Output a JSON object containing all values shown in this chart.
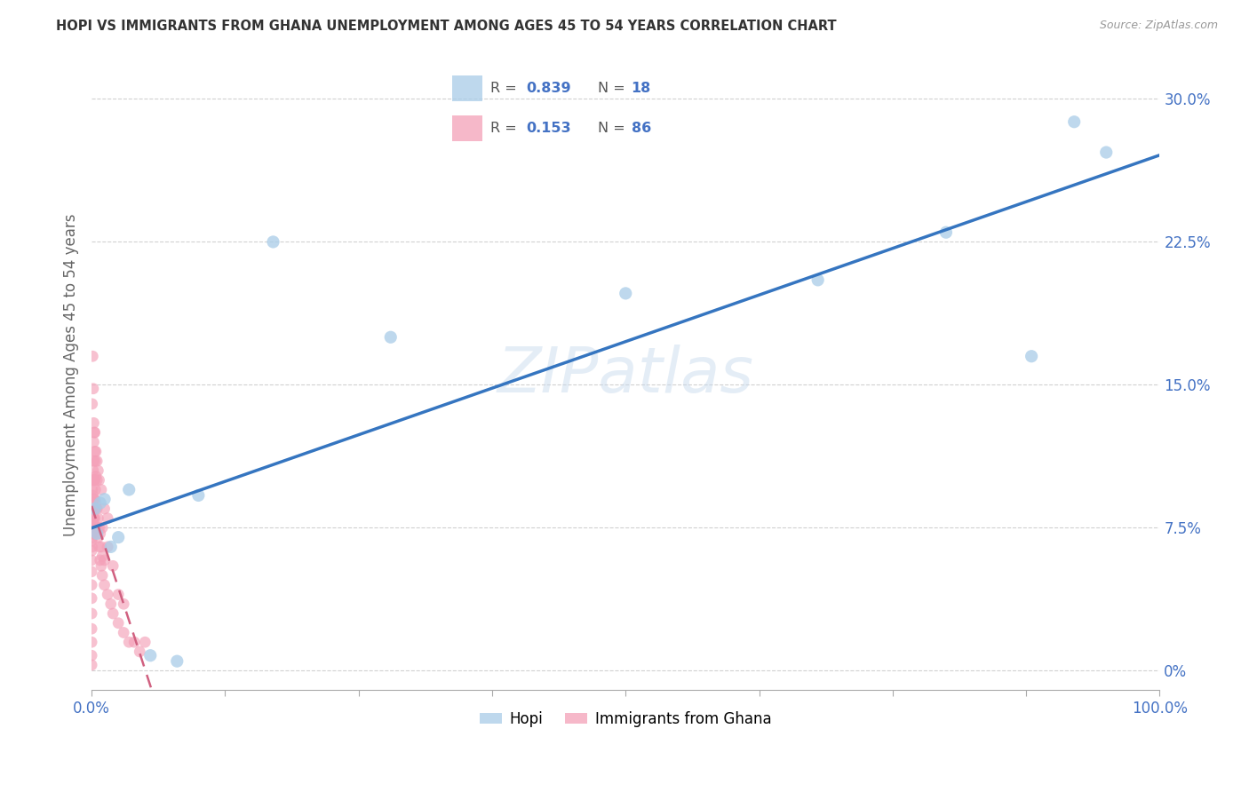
{
  "title": "HOPI VS IMMIGRANTS FROM GHANA UNEMPLOYMENT AMONG AGES 45 TO 54 YEARS CORRELATION CHART",
  "source": "Source: ZipAtlas.com",
  "ylabel": "Unemployment Among Ages 45 to 54 years",
  "legend_hopi_label": "Hopi",
  "legend_ghana_label": "Immigrants from Ghana",
  "hopi_R": 0.839,
  "hopi_N": 18,
  "ghana_R": 0.153,
  "ghana_N": 86,
  "hopi_color": "#a8cce8",
  "ghana_color": "#f4a0b8",
  "hopi_line_color": "#3575c0",
  "ghana_line_color": "#d06080",
  "xlim": [
    0,
    100
  ],
  "ylim": [
    -1,
    32
  ],
  "ytick_vals": [
    0.0,
    7.5,
    15.0,
    22.5,
    30.0
  ],
  "ytick_labels": [
    "0%",
    "7.5%",
    "15.0%",
    "22.5%",
    "30.0%"
  ],
  "xtick_vals": [
    0,
    12.5,
    25,
    37.5,
    50,
    62.5,
    75,
    87.5,
    100
  ],
  "xtick_show": [
    0,
    100
  ],
  "background_color": "#ffffff",
  "watermark": "ZIPatlas",
  "hopi_points_x": [
    0.3,
    0.5,
    0.8,
    1.2,
    1.8,
    2.5,
    3.5,
    5.5,
    8.0,
    10.0,
    17.0,
    28.0,
    50.0,
    68.0,
    80.0,
    88.0,
    92.0,
    95.0
  ],
  "hopi_points_y": [
    8.5,
    7.2,
    8.8,
    9.0,
    6.5,
    7.0,
    9.5,
    0.8,
    0.5,
    9.2,
    22.5,
    17.5,
    19.8,
    20.5,
    23.0,
    16.5,
    28.8,
    27.2
  ],
  "ghana_points_x": [
    0.0,
    0.0,
    0.0,
    0.0,
    0.0,
    0.0,
    0.0,
    0.0,
    0.0,
    0.0,
    0.0,
    0.0,
    0.0,
    0.0,
    0.0,
    0.05,
    0.05,
    0.05,
    0.1,
    0.1,
    0.1,
    0.1,
    0.1,
    0.15,
    0.15,
    0.15,
    0.15,
    0.2,
    0.2,
    0.2,
    0.2,
    0.2,
    0.25,
    0.25,
    0.3,
    0.3,
    0.3,
    0.3,
    0.35,
    0.35,
    0.4,
    0.4,
    0.4,
    0.5,
    0.5,
    0.5,
    0.6,
    0.6,
    0.7,
    0.7,
    0.8,
    0.8,
    0.9,
    0.9,
    1.0,
    1.0,
    1.0,
    1.2,
    1.2,
    1.5,
    1.5,
    1.8,
    2.0,
    2.0,
    2.5,
    2.5,
    3.0,
    3.0,
    3.5,
    4.0,
    4.5,
    5.0,
    0.05,
    0.1,
    0.15,
    0.2,
    0.25,
    0.3,
    0.35,
    0.4,
    0.5,
    0.6,
    0.7,
    0.9,
    1.2,
    1.5
  ],
  "ghana_points_y": [
    0.3,
    0.8,
    1.5,
    2.2,
    3.0,
    3.8,
    4.5,
    5.2,
    5.8,
    6.3,
    6.8,
    7.2,
    7.6,
    8.0,
    8.5,
    6.5,
    7.5,
    9.5,
    7.0,
    7.8,
    8.5,
    9.2,
    10.0,
    7.2,
    8.0,
    9.0,
    10.5,
    8.0,
    9.0,
    10.0,
    11.0,
    12.0,
    8.5,
    10.0,
    8.0,
    9.0,
    10.0,
    11.5,
    8.5,
    9.5,
    7.5,
    8.8,
    10.2,
    7.5,
    8.5,
    10.0,
    7.0,
    8.0,
    6.5,
    7.5,
    5.8,
    7.2,
    5.5,
    6.5,
    5.0,
    6.0,
    7.5,
    4.5,
    5.8,
    4.0,
    6.5,
    3.5,
    3.0,
    5.5,
    2.5,
    4.0,
    2.0,
    3.5,
    1.5,
    1.5,
    1.0,
    1.5,
    14.0,
    16.5,
    14.8,
    13.0,
    12.5,
    12.5,
    11.0,
    11.5,
    11.0,
    10.5,
    10.0,
    9.5,
    8.5,
    8.0
  ]
}
